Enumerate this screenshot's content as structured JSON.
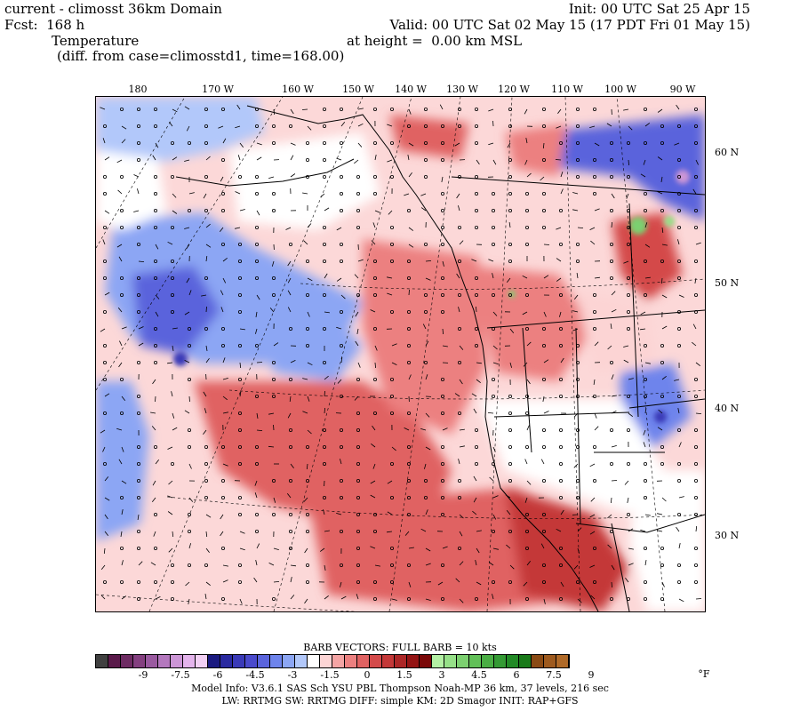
{
  "header": {
    "line1_left": "current - climosst 36km Domain",
    "line1_right": "Init: 00 UTC Sat 25 Apr 15",
    "line2_left": "Fcst:  168 h",
    "line2_right": "Valid: 00 UTC Sat 02 May 15 (17 PDT Fri 01 May 15)",
    "line3_left": "Temperature",
    "line3_right": "at height =  0.00 km MSL",
    "line4_left": "(diff. from case=climosstd1, time=168.00)"
  },
  "map": {
    "lon_labels": [
      "180",
      "170 W",
      "160 W",
      "150 W",
      "140 W",
      "130 W",
      "120 W",
      "110 W",
      "100 W",
      "90 W"
    ],
    "lat_labels": [
      "60 N",
      "50 N",
      "40 N",
      "30 N"
    ]
  },
  "legend": {
    "barb_title": "BARB VECTORS:  FULL BARB = 10 kts",
    "unit": "°F",
    "ticks": [
      "-9",
      "-7.5",
      "-6",
      "-4.5",
      "-3",
      "-1.5",
      "0",
      "1.5",
      "3",
      "4.5",
      "6",
      "7.5",
      "9"
    ],
    "colors": [
      "#404040",
      "#5a1a4a",
      "#6e2c63",
      "#844080",
      "#9a5aa0",
      "#b478be",
      "#cc96d6",
      "#e4b4ec",
      "#f2d0f4",
      "#1a1a80",
      "#2a2aa0",
      "#3a3ab8",
      "#4a4acc",
      "#5a64dc",
      "#6e84ec",
      "#8ca6f4",
      "#b2c8fa",
      "#ffffff",
      "#fcd4d4",
      "#f4a4a4",
      "#ec8080",
      "#e06262",
      "#d44a4a",
      "#c43838",
      "#ac2626",
      "#941414",
      "#7a0808",
      "#b4f0a4",
      "#96e088",
      "#7cd070",
      "#62c058",
      "#4aae44",
      "#349a34",
      "#228a26",
      "#1a7a1a",
      "#8a4a14",
      "#9e5a1e",
      "#b06a28"
    ]
  },
  "footer": {
    "line1": "Model Info: V3.6.1    SAS Sch YSU PBL  Thompson     Noah-MP   36 km,   37 levels,  216 sec",
    "line2": "LW: RRTMG SW: RRTMG    DIFF: simple KM: 2D Smagor INIT: RAP+GFS"
  }
}
